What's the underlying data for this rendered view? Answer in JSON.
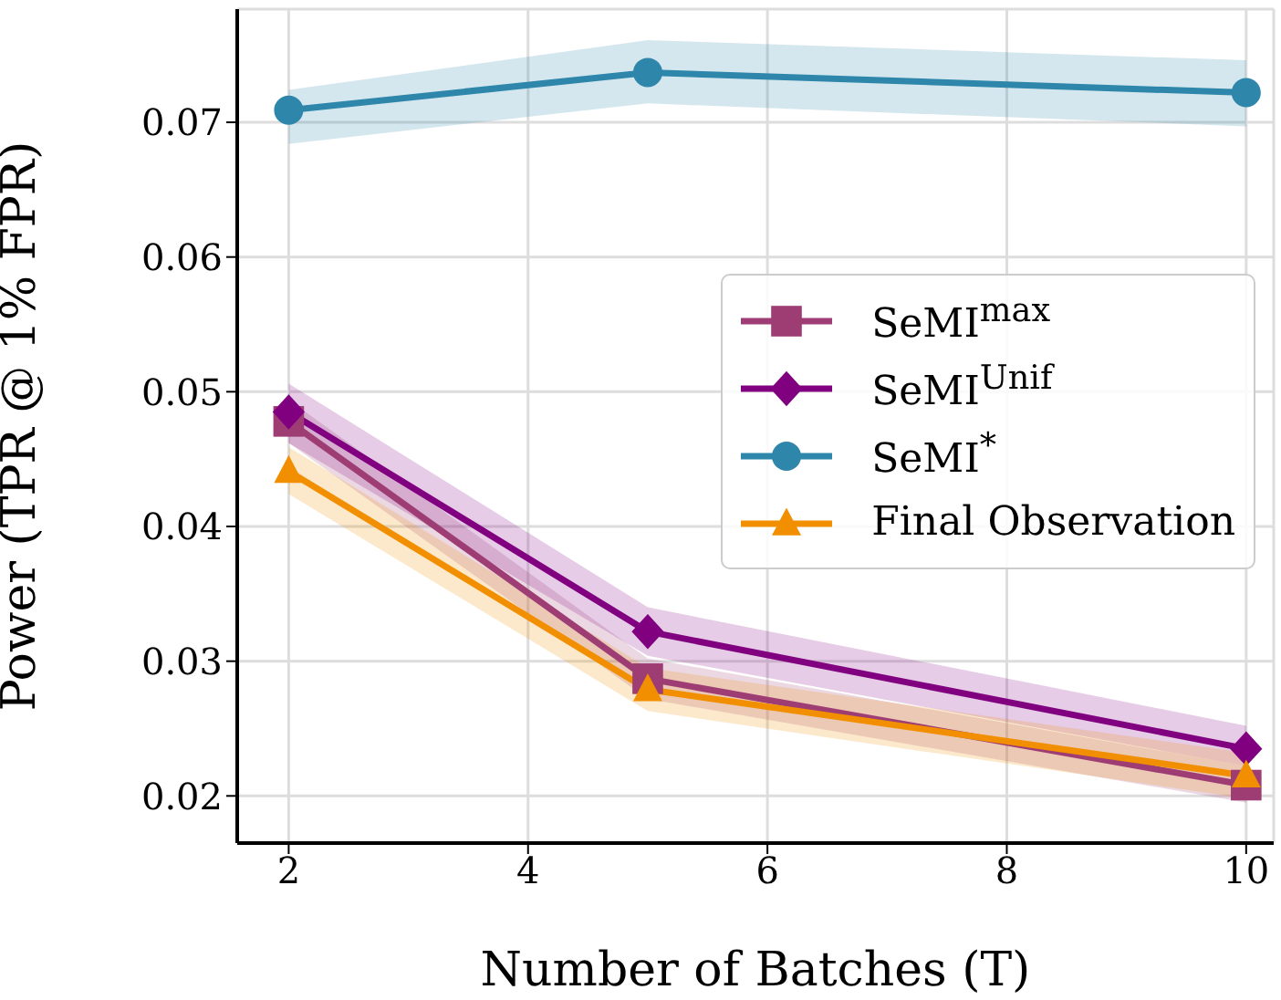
{
  "chart_data": {
    "type": "line",
    "xlabel": "Number of Batches (T)",
    "ylabel": "Power (TPR @ 1% FPR)",
    "x": [
      2,
      5,
      10
    ],
    "xlim": [
      1.57,
      10.23
    ],
    "xticks": [
      2,
      4,
      6,
      8,
      10
    ],
    "ylim": [
      0.0165,
      0.0784
    ],
    "yticks": [
      0.02,
      0.03,
      0.04,
      0.05,
      0.06,
      0.07
    ],
    "grid": true,
    "legend": "right",
    "line_style": "solid",
    "series": [
      {
        "name": "SeMI$^{max}$",
        "color": "#9e3d74",
        "marker": "square",
        "values": [
          0.0478,
          0.0287,
          0.0208
        ],
        "lower": [
          0.0462,
          0.0272,
          0.0195
        ],
        "upper": [
          0.0494,
          0.0302,
          0.0222
        ]
      },
      {
        "name": "SeMI$^{Unif}$",
        "color": "#800080",
        "marker": "diamond",
        "values": [
          0.0485,
          0.0322,
          0.0235
        ],
        "lower": [
          0.0462,
          0.0304,
          0.0222
        ],
        "upper": [
          0.0506,
          0.034,
          0.0252
        ]
      },
      {
        "name": "SeMI$^{*}$",
        "color": "#2e86ab",
        "marker": "circle",
        "values": [
          0.0709,
          0.0737,
          0.0722
        ],
        "lower": [
          0.0684,
          0.0714,
          0.0697
        ],
        "upper": [
          0.0724,
          0.0761,
          0.0746
        ]
      },
      {
        "name": "Final Observation",
        "color": "#f18f01",
        "marker": "triangle",
        "values": [
          0.0441,
          0.0279,
          0.0215
        ],
        "lower": [
          0.0424,
          0.0263,
          0.0198
        ],
        "upper": [
          0.0459,
          0.0295,
          0.0232
        ]
      }
    ]
  }
}
